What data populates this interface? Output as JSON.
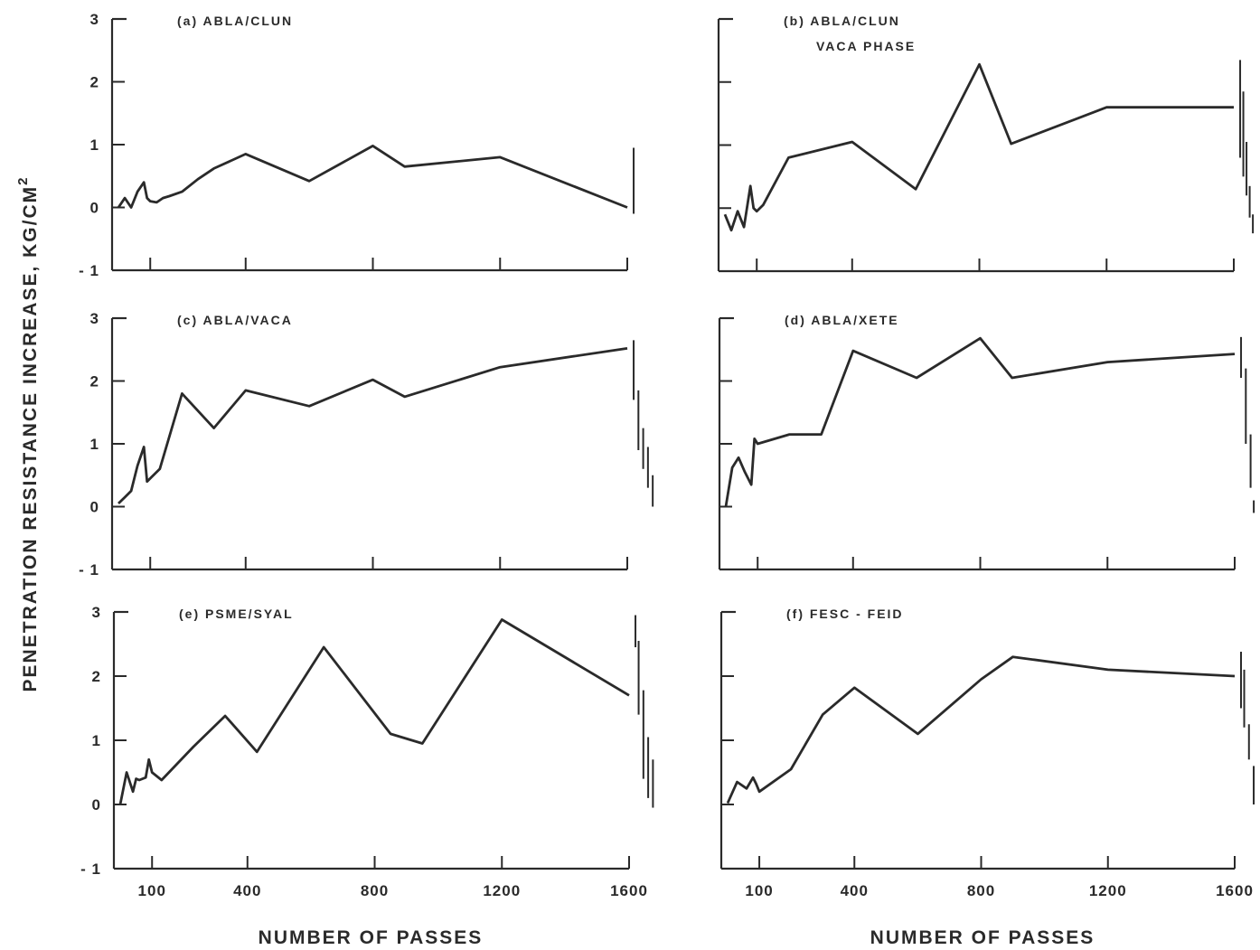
{
  "ylabel": "PENETRATION RESISTANCE INCREASE, KG/CM",
  "ylabel_sup": "2",
  "xlabel": "NUMBER OF PASSES",
  "chart_data": [
    {
      "type": "line",
      "title": "(a) ABLA/CLUN",
      "subtitle": "",
      "x_ticks": [
        100,
        400,
        800,
        1200,
        1600
      ],
      "y_ticks": [
        -1,
        0,
        1,
        2,
        3
      ],
      "ylim": [
        -1,
        3
      ],
      "x": [
        0,
        20,
        40,
        60,
        80,
        90,
        100,
        120,
        140,
        160,
        200,
        250,
        300,
        400,
        600,
        800,
        900,
        1200,
        1600
      ],
      "values": [
        0.0,
        0.15,
        0.0,
        0.25,
        0.4,
        0.15,
        0.1,
        0.08,
        0.15,
        0.18,
        0.25,
        0.45,
        0.62,
        0.85,
        0.42,
        0.98,
        0.65,
        0.8,
        0.0
      ],
      "error_bars": [
        {
          "x": 1620,
          "low": -0.1,
          "high": 0.95
        }
      ]
    },
    {
      "type": "line",
      "title": "(b) ABLA/CLUN",
      "subtitle": "VACA PHASE",
      "x_ticks": [
        100,
        400,
        800,
        1200,
        1600
      ],
      "y_ticks": [],
      "ylim": [
        -1,
        3
      ],
      "x": [
        0,
        20,
        40,
        60,
        80,
        90,
        100,
        120,
        200,
        400,
        600,
        800,
        900,
        1200,
        1600
      ],
      "values": [
        -0.1,
        -0.35,
        -0.05,
        -0.3,
        0.35,
        0.0,
        -0.05,
        0.05,
        0.8,
        1.05,
        0.3,
        2.28,
        1.02,
        1.6,
        1.6
      ],
      "error_bars": [
        {
          "x": 1620,
          "low": 0.8,
          "high": 2.35
        },
        {
          "x": 1630,
          "low": 0.5,
          "high": 1.85
        },
        {
          "x": 1640,
          "low": 0.2,
          "high": 1.05
        },
        {
          "x": 1650,
          "low": -0.15,
          "high": 0.35
        },
        {
          "x": 1660,
          "low": -0.4,
          "high": -0.1
        }
      ]
    },
    {
      "type": "line",
      "title": "(c) ABLA/VACA",
      "subtitle": "",
      "x_ticks": [
        100,
        400,
        800,
        1200,
        1600
      ],
      "y_ticks": [
        -1,
        0,
        1,
        2,
        3
      ],
      "ylim": [
        -1,
        3
      ],
      "x": [
        0,
        20,
        40,
        60,
        80,
        90,
        100,
        130,
        200,
        300,
        400,
        600,
        800,
        900,
        1200,
        1600
      ],
      "values": [
        0.05,
        0.15,
        0.25,
        0.65,
        0.95,
        0.4,
        0.45,
        0.6,
        1.8,
        1.25,
        1.85,
        1.6,
        2.02,
        1.75,
        2.22,
        2.52
      ],
      "error_bars": [
        {
          "x": 1620,
          "low": 1.7,
          "high": 2.65
        },
        {
          "x": 1635,
          "low": 0.9,
          "high": 1.85
        },
        {
          "x": 1650,
          "low": 0.6,
          "high": 1.25
        },
        {
          "x": 1665,
          "low": 0.3,
          "high": 0.95
        },
        {
          "x": 1680,
          "low": 0.0,
          "high": 0.5
        }
      ]
    },
    {
      "type": "line",
      "title": "(d) ABLA/XETE",
      "subtitle": "",
      "x_ticks": [
        100,
        400,
        800,
        1200,
        1600
      ],
      "y_ticks": [],
      "ylim": [
        -1,
        3
      ],
      "x": [
        0,
        20,
        40,
        60,
        80,
        90,
        100,
        200,
        300,
        400,
        600,
        800,
        900,
        1200,
        1600
      ],
      "values": [
        0.0,
        0.62,
        0.78,
        0.55,
        0.35,
        1.08,
        1.0,
        1.15,
        1.15,
        2.48,
        2.05,
        2.68,
        2.05,
        2.3,
        2.43
      ],
      "error_bars": [
        {
          "x": 1620,
          "low": 2.05,
          "high": 2.7
        },
        {
          "x": 1635,
          "low": 1.0,
          "high": 2.2
        },
        {
          "x": 1650,
          "low": 0.3,
          "high": 1.15
        },
        {
          "x": 1660,
          "low": -0.1,
          "high": 0.1
        }
      ]
    },
    {
      "type": "line",
      "title": "(e) PSME/SYAL",
      "subtitle": "",
      "x_ticks": [
        100,
        400,
        800,
        1200,
        1600
      ],
      "y_ticks": [
        -1,
        0,
        1,
        2,
        3
      ],
      "ylim": [
        -1,
        3
      ],
      "x": [
        0,
        20,
        40,
        50,
        60,
        80,
        90,
        100,
        130,
        230,
        330,
        430,
        640,
        850,
        950,
        1200,
        1600
      ],
      "values": [
        0.0,
        0.5,
        0.2,
        0.4,
        0.38,
        0.42,
        0.7,
        0.5,
        0.38,
        0.9,
        1.38,
        0.82,
        2.45,
        1.1,
        0.95,
        2.88,
        1.7
      ],
      "error_bars": [
        {
          "x": 1620,
          "low": 2.45,
          "high": 2.95
        },
        {
          "x": 1630,
          "low": 1.4,
          "high": 2.55
        },
        {
          "x": 1645,
          "low": 0.4,
          "high": 1.78
        },
        {
          "x": 1660,
          "low": 0.1,
          "high": 1.05
        },
        {
          "x": 1675,
          "low": -0.05,
          "high": 0.7
        }
      ]
    },
    {
      "type": "line",
      "title": "(f) FESC - FEID",
      "subtitle": "",
      "x_ticks": [
        100,
        400,
        800,
        1200,
        1600
      ],
      "y_ticks": [],
      "ylim": [
        -1,
        3
      ],
      "x": [
        0,
        30,
        60,
        80,
        90,
        100,
        200,
        300,
        400,
        600,
        800,
        900,
        1200,
        1600
      ],
      "values": [
        0.02,
        0.35,
        0.25,
        0.42,
        0.32,
        0.2,
        0.55,
        1.4,
        1.82,
        1.1,
        1.95,
        2.3,
        2.1,
        2.0
      ],
      "error_bars": [
        {
          "x": 1620,
          "low": 1.5,
          "high": 2.38
        },
        {
          "x": 1630,
          "low": 1.2,
          "high": 2.1
        },
        {
          "x": 1645,
          "low": 0.7,
          "high": 1.25
        },
        {
          "x": 1660,
          "low": 0.0,
          "high": 0.6
        }
      ]
    }
  ]
}
